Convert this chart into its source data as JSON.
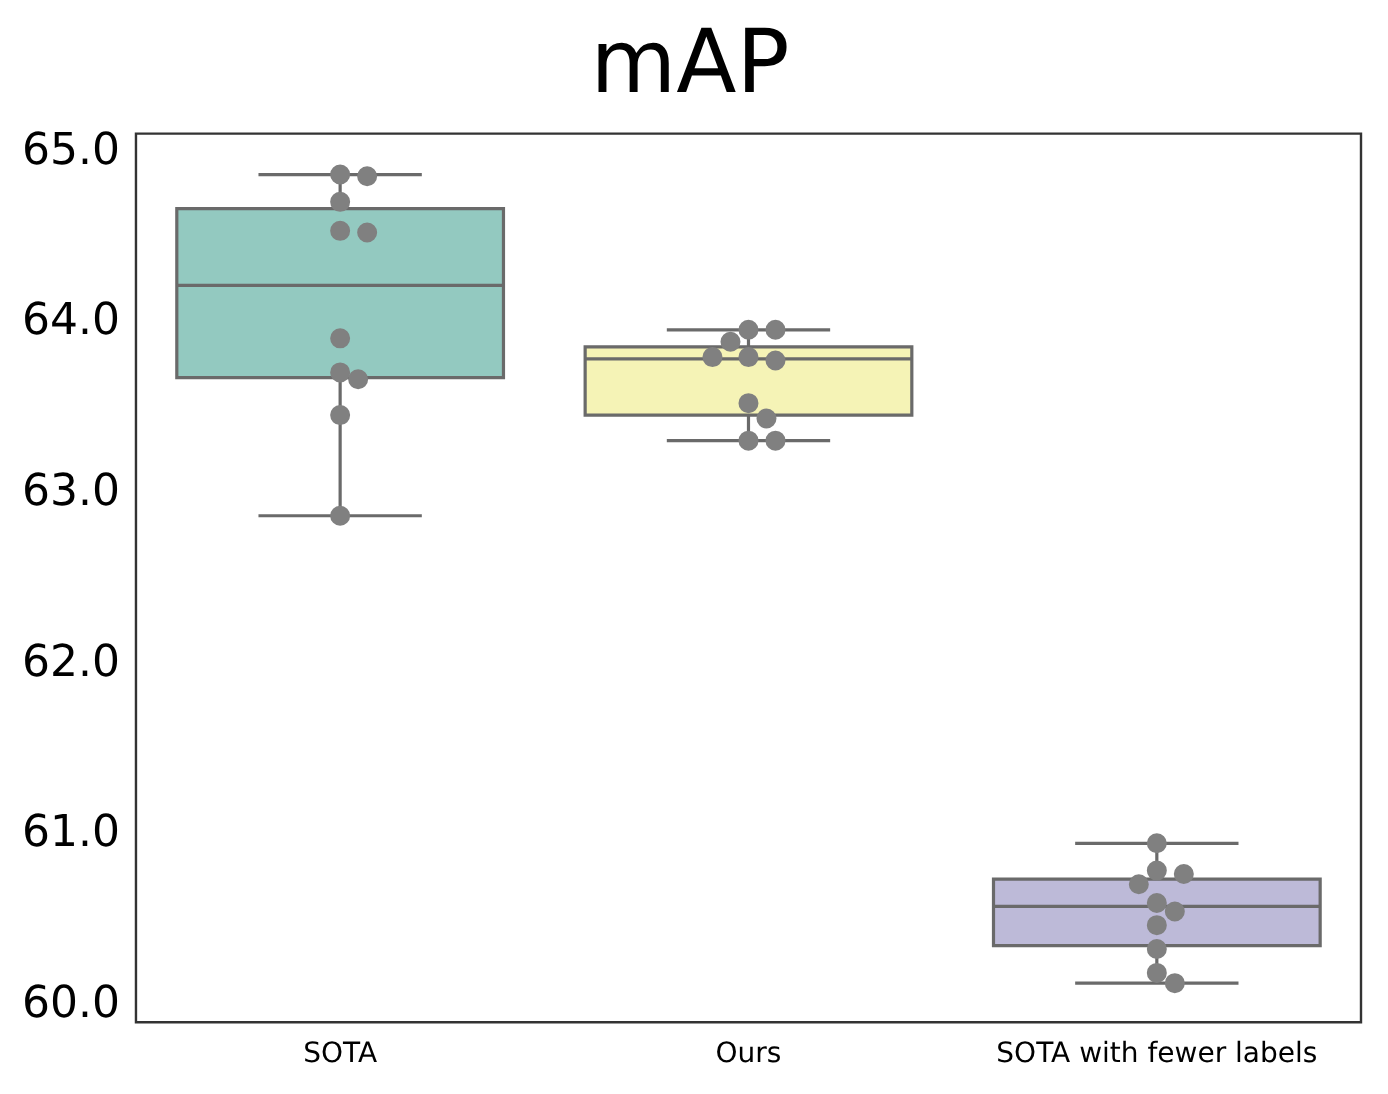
{
  "chart_data": {
    "type": "box",
    "title": "mAP",
    "categories": [
      "SOTA",
      "Ours",
      "SOTA with fewer labels"
    ],
    "colors": [
      "#93c9c0",
      "#f5f3b6",
      "#bdbad8"
    ],
    "boxes": [
      {
        "low": 62.87,
        "q1": 63.68,
        "median": 64.22,
        "q3": 64.67,
        "high": 64.87
      },
      {
        "low": 63.31,
        "q1": 63.46,
        "median": 63.79,
        "q3": 63.86,
        "high": 63.96
      },
      {
        "low": 60.13,
        "q1": 60.35,
        "median": 60.58,
        "q3": 60.74,
        "high": 60.95
      }
    ],
    "series": [
      {
        "type": "scatter",
        "color": "#808080",
        "x": [
          "SOTA",
          "SOTA",
          "SOTA",
          "SOTA",
          "SOTA",
          "SOTA",
          "SOTA",
          "SOTA",
          "SOTA",
          "SOTA"
        ],
        "values": [
          64.87,
          64.86,
          64.71,
          64.54,
          64.53,
          63.91,
          63.71,
          63.67,
          63.46,
          62.87
        ]
      },
      {
        "type": "scatter",
        "color": "#808080",
        "x": [
          "Ours",
          "Ours",
          "Ours",
          "Ours",
          "Ours",
          "Ours",
          "Ours",
          "Ours",
          "Ours",
          "Ours"
        ],
        "values": [
          63.96,
          63.96,
          63.89,
          63.8,
          63.78,
          63.8,
          63.53,
          63.44,
          63.31,
          63.31
        ]
      },
      {
        "type": "scatter",
        "color": "#808080",
        "x": [
          "SOTA with fewer labels",
          "SOTA with fewer labels",
          "SOTA with fewer labels",
          "SOTA with fewer labels",
          "SOTA with fewer labels",
          "SOTA with fewer labels",
          "SOTA with fewer labels",
          "SOTA with fewer labels",
          "SOTA with fewer labels",
          "SOTA with fewer labels"
        ],
        "values": [
          60.95,
          60.79,
          60.77,
          60.71,
          60.6,
          60.55,
          60.47,
          60.33,
          60.19,
          60.13
        ]
      }
    ],
    "ylim": [
      59.9,
      65.11
    ],
    "yticks": [
      {
        "value": 60,
        "label": "60.0"
      },
      {
        "value": 61,
        "label": "61.0"
      },
      {
        "value": 62,
        "label": "62.0"
      },
      {
        "value": 63,
        "label": "63.0"
      },
      {
        "value": 64,
        "label": "64.0"
      },
      {
        "value": 65,
        "label": "65.0"
      }
    ],
    "grid": false,
    "legend": false,
    "marker": "circle"
  }
}
